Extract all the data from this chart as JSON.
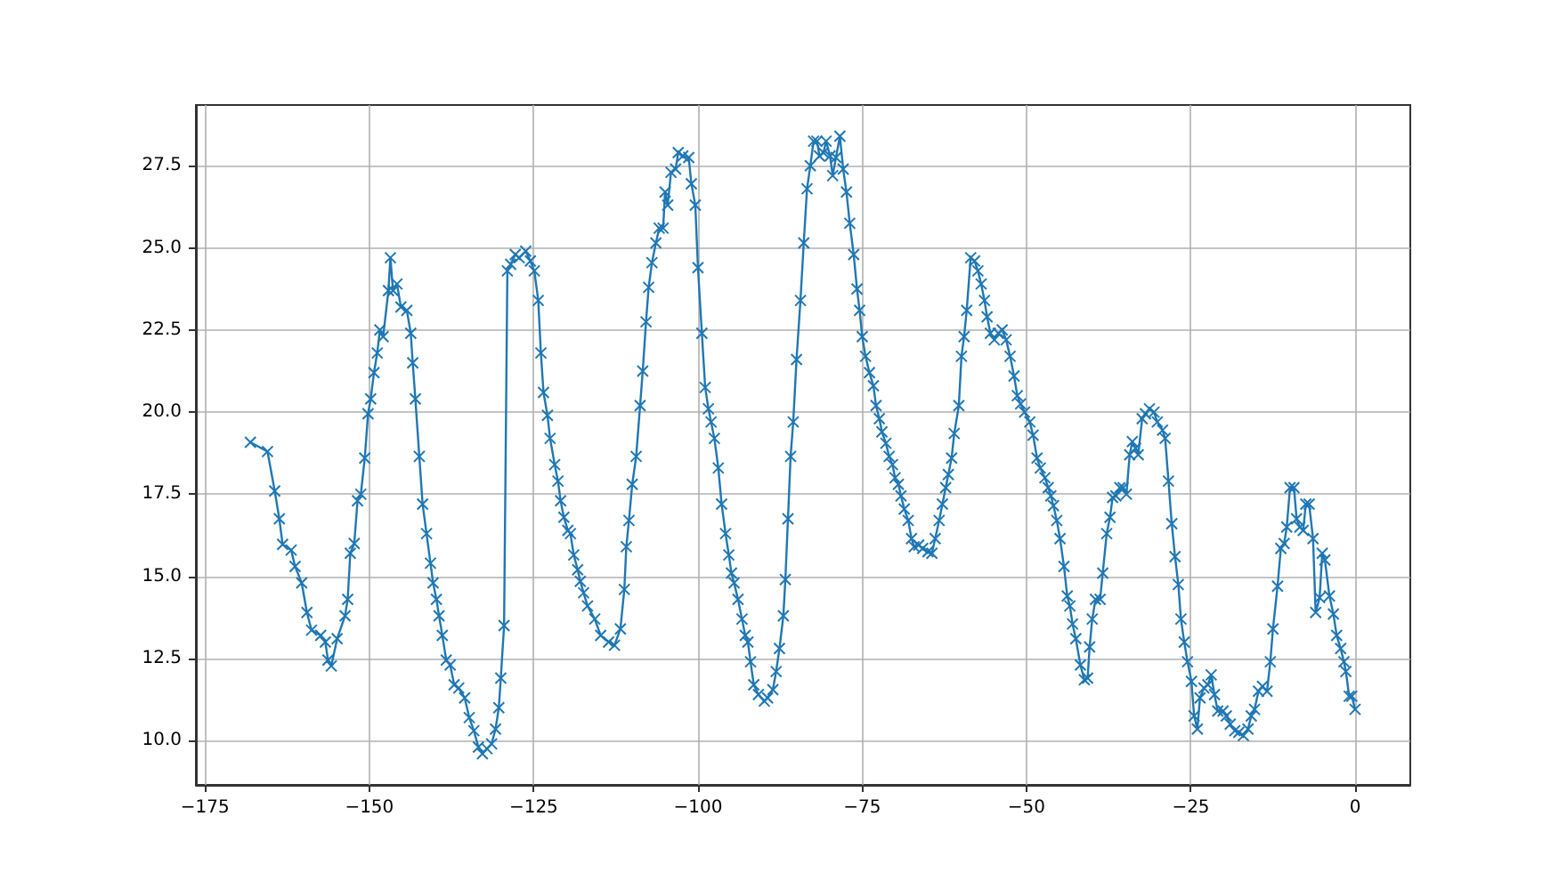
{
  "chart_data": {
    "type": "line",
    "marker": "cross",
    "line_style": "solid",
    "grid": true,
    "xlim": [
      -176.4,
      8.4
    ],
    "xticks": [
      {
        "value": -175,
        "label": "−175"
      },
      {
        "value": -150,
        "label": "−150"
      },
      {
        "value": -125,
        "label": "−125"
      },
      {
        "value": -100,
        "label": "−100"
      },
      {
        "value": -75,
        "label": "−75"
      },
      {
        "value": -50,
        "label": "−50"
      },
      {
        "value": -25,
        "label": "−25"
      },
      {
        "value": 0,
        "label": "0"
      }
    ],
    "ylim": [
      8.65,
      29.35
    ],
    "yticks": [
      {
        "value": 10,
        "label": "10.0"
      },
      {
        "value": 12.5,
        "label": "12.5"
      },
      {
        "value": 15,
        "label": "15.0"
      },
      {
        "value": 17.5,
        "label": "17.5"
      },
      {
        "value": 20,
        "label": "20.0"
      },
      {
        "value": 22.5,
        "label": "22.5"
      },
      {
        "value": 25,
        "label": "25.0"
      },
      {
        "value": 27.5,
        "label": "27.5"
      }
    ],
    "series": [
      {
        "color": "#1f77b4",
        "x": [
          -168.1,
          -165.5,
          -164.4,
          -163.7,
          -163.2,
          -161.9,
          -161.3,
          -160.3,
          -159.5,
          -158.8,
          -157.4,
          -156.7,
          -156.3,
          -155.8,
          -154.9,
          -153.7,
          -153.3,
          -152.9,
          -152.3,
          -151.8,
          -151.3,
          -150.7,
          -150.2,
          -149.8,
          -149.3,
          -148.8,
          -148.4,
          -147.9,
          -147.1,
          -146.8,
          -146.4,
          -145.8,
          -145.2,
          -144.3,
          -143.7,
          -143.4,
          -143.0,
          -142.4,
          -141.9,
          -141.3,
          -140.7,
          -140.3,
          -139.8,
          -139.4,
          -138.9,
          -138.3,
          -137.7,
          -137.1,
          -136.4,
          -135.5,
          -134.8,
          -134.1,
          -133.4,
          -132.8,
          -132.1,
          -131.4,
          -130.8,
          -130.3,
          -130.0,
          -129.5,
          -129.0,
          -128.5,
          -127.8,
          -127.2,
          -126.2,
          -125.5,
          -124.9,
          -124.3,
          -123.9,
          -123.5,
          -122.9,
          -122.5,
          -121.8,
          -121.3,
          -120.9,
          -120.4,
          -119.8,
          -119.4,
          -118.9,
          -118.3,
          -117.9,
          -117.4,
          -116.8,
          -115.7,
          -114.8,
          -113.6,
          -112.7,
          -111.8,
          -111.2,
          -110.9,
          -110.5,
          -110.0,
          -109.4,
          -108.8,
          -108.4,
          -107.9,
          -107.5,
          -107.0,
          -106.4,
          -105.9,
          -105.3,
          -105.0,
          -104.6,
          -104.1,
          -103.4,
          -103.0,
          -102.3,
          -101.4,
          -101.0,
          -100.4,
          -100.0,
          -99.4,
          -98.9,
          -98.4,
          -98.0,
          -97.5,
          -96.9,
          -96.4,
          -95.8,
          -95.3,
          -94.9,
          -94.5,
          -93.9,
          -93.3,
          -92.8,
          -92.4,
          -92.0,
          -91.5,
          -90.8,
          -89.9,
          -89.4,
          -88.6,
          -88.1,
          -87.6,
          -87.0,
          -86.7,
          -86.3,
          -85.9,
          -85.5,
          -85.0,
          -84.4,
          -83.9,
          -83.4,
          -82.9,
          -82.4,
          -81.9,
          -81.5,
          -80.9,
          -80.5,
          -79.9,
          -79.5,
          -79.0,
          -78.4,
          -77.9,
          -77.4,
          -76.9,
          -76.3,
          -75.8,
          -75.4,
          -75.0,
          -74.5,
          -73.9,
          -73.3,
          -72.9,
          -72.4,
          -72.0,
          -71.4,
          -70.9,
          -70.4,
          -70.0,
          -69.5,
          -69.1,
          -68.6,
          -68.0,
          -67.5,
          -67.1,
          -66.4,
          -65.8,
          -65.0,
          -64.4,
          -63.9,
          -63.3,
          -62.8,
          -62.3,
          -61.9,
          -61.4,
          -61.0,
          -60.3,
          -59.9,
          -59.5,
          -59.1,
          -58.5,
          -57.9,
          -57.4,
          -56.9,
          -56.4,
          -56.0,
          -55.5,
          -54.9,
          -54.3,
          -53.7,
          -53.1,
          -52.5,
          -51.9,
          -51.4,
          -50.9,
          -50.3,
          -49.5,
          -49.0,
          -48.4,
          -47.9,
          -47.2,
          -46.7,
          -46.3,
          -45.9,
          -45.4,
          -44.9,
          -44.3,
          -43.8,
          -43.4,
          -43.0,
          -42.5,
          -41.8,
          -41.2,
          -40.7,
          -40.4,
          -40.0,
          -39.5,
          -38.8,
          -38.4,
          -37.8,
          -37.3,
          -36.9,
          -36.4,
          -35.8,
          -35.3,
          -34.8,
          -34.3,
          -33.9,
          -33.4,
          -33.0,
          -32.4,
          -31.9,
          -31.3,
          -30.6,
          -30.1,
          -29.3,
          -28.9,
          -28.4,
          -27.9,
          -27.4,
          -26.9,
          -26.5,
          -26.0,
          -25.5,
          -24.9,
          -24.5,
          -24.0,
          -23.6,
          -23.0,
          -22.4,
          -21.9,
          -21.4,
          -20.9,
          -20.1,
          -19.6,
          -19.0,
          -18.3,
          -17.7,
          -17.0,
          -16.3,
          -15.8,
          -15.3,
          -14.7,
          -14.1,
          -13.4,
          -12.9,
          -12.5,
          -11.8,
          -11.3,
          -10.8,
          -10.4,
          -9.9,
          -9.3,
          -8.9,
          -8.4,
          -7.9,
          -7.5,
          -7.0,
          -6.4,
          -6.0,
          -5.4,
          -5.0,
          -4.6,
          -3.9,
          -3.3,
          -2.8,
          -2.2,
          -1.7,
          -1.4,
          -0.9,
          -0.5,
          0.0
        ],
        "values": [
          19.08,
          18.8,
          17.6,
          16.75,
          15.97,
          15.8,
          15.3,
          14.8,
          13.9,
          13.36,
          13.2,
          13.0,
          12.45,
          12.27,
          13.1,
          13.8,
          14.3,
          15.7,
          16.0,
          17.3,
          17.5,
          18.6,
          19.95,
          20.4,
          21.2,
          21.8,
          22.5,
          22.3,
          23.7,
          24.7,
          23.7,
          23.9,
          23.2,
          23.1,
          22.4,
          21.5,
          20.4,
          18.65,
          17.2,
          16.3,
          15.4,
          14.8,
          14.3,
          13.8,
          13.2,
          12.45,
          12.3,
          11.7,
          11.6,
          11.3,
          10.7,
          10.3,
          9.8,
          9.6,
          9.75,
          9.9,
          10.35,
          11.0,
          11.9,
          13.5,
          24.3,
          24.5,
          24.8,
          24.7,
          24.9,
          24.6,
          24.3,
          23.4,
          21.8,
          20.6,
          19.9,
          19.2,
          18.4,
          17.9,
          17.3,
          16.8,
          16.4,
          16.3,
          15.65,
          15.2,
          14.85,
          14.5,
          14.1,
          13.7,
          13.2,
          13.0,
          12.9,
          13.4,
          14.6,
          15.9,
          16.7,
          17.8,
          18.65,
          20.2,
          21.25,
          22.75,
          23.8,
          24.55,
          25.15,
          25.6,
          25.6,
          26.7,
          26.3,
          27.3,
          27.4,
          27.9,
          27.8,
          27.75,
          26.95,
          26.3,
          24.4,
          22.4,
          20.75,
          20.1,
          19.7,
          19.2,
          18.3,
          17.2,
          16.3,
          15.65,
          15.1,
          14.8,
          14.3,
          13.7,
          13.2,
          13.0,
          12.4,
          11.7,
          11.4,
          11.2,
          11.3,
          11.55,
          12.1,
          12.8,
          13.8,
          14.9,
          16.75,
          18.65,
          19.7,
          21.6,
          23.4,
          25.15,
          26.8,
          27.5,
          28.25,
          28.25,
          27.8,
          27.9,
          28.25,
          27.8,
          27.2,
          27.75,
          28.4,
          27.4,
          26.7,
          25.75,
          24.8,
          23.75,
          23.1,
          22.3,
          21.7,
          21.2,
          20.8,
          20.2,
          19.8,
          19.4,
          19.05,
          18.65,
          18.4,
          18.0,
          17.8,
          17.45,
          17.05,
          16.7,
          16.15,
          15.9,
          15.95,
          15.85,
          15.75,
          15.7,
          16.15,
          16.7,
          17.2,
          17.7,
          18.1,
          18.6,
          19.35,
          20.2,
          21.7,
          22.3,
          23.1,
          24.7,
          24.6,
          24.3,
          23.9,
          23.4,
          22.9,
          22.4,
          22.2,
          22.4,
          22.5,
          22.2,
          21.7,
          21.1,
          20.5,
          20.25,
          20.0,
          19.7,
          19.3,
          18.6,
          18.3,
          18.0,
          17.7,
          17.45,
          17.15,
          16.7,
          16.15,
          15.3,
          14.4,
          14.1,
          13.55,
          13.1,
          12.3,
          11.85,
          11.9,
          12.85,
          13.7,
          14.3,
          14.3,
          15.1,
          16.3,
          16.8,
          17.4,
          17.45,
          17.7,
          17.7,
          17.5,
          18.7,
          19.1,
          18.9,
          18.7,
          19.8,
          19.95,
          20.1,
          20.0,
          19.7,
          19.45,
          19.2,
          17.9,
          16.6,
          15.6,
          14.75,
          13.7,
          13.0,
          12.4,
          11.8,
          10.75,
          10.35,
          11.3,
          11.6,
          11.7,
          12.0,
          11.4,
          10.9,
          10.9,
          10.75,
          10.5,
          10.3,
          10.25,
          10.15,
          10.35,
          10.75,
          10.95,
          11.5,
          11.65,
          11.5,
          12.4,
          13.4,
          14.7,
          15.85,
          16.0,
          16.5,
          17.7,
          17.7,
          16.75,
          16.5,
          16.4,
          17.2,
          17.2,
          16.15,
          13.9,
          14.35,
          15.7,
          15.5,
          14.4,
          13.85,
          13.2,
          12.8,
          12.4,
          12.1,
          11.35,
          11.35,
          10.95
        ]
      }
    ]
  }
}
